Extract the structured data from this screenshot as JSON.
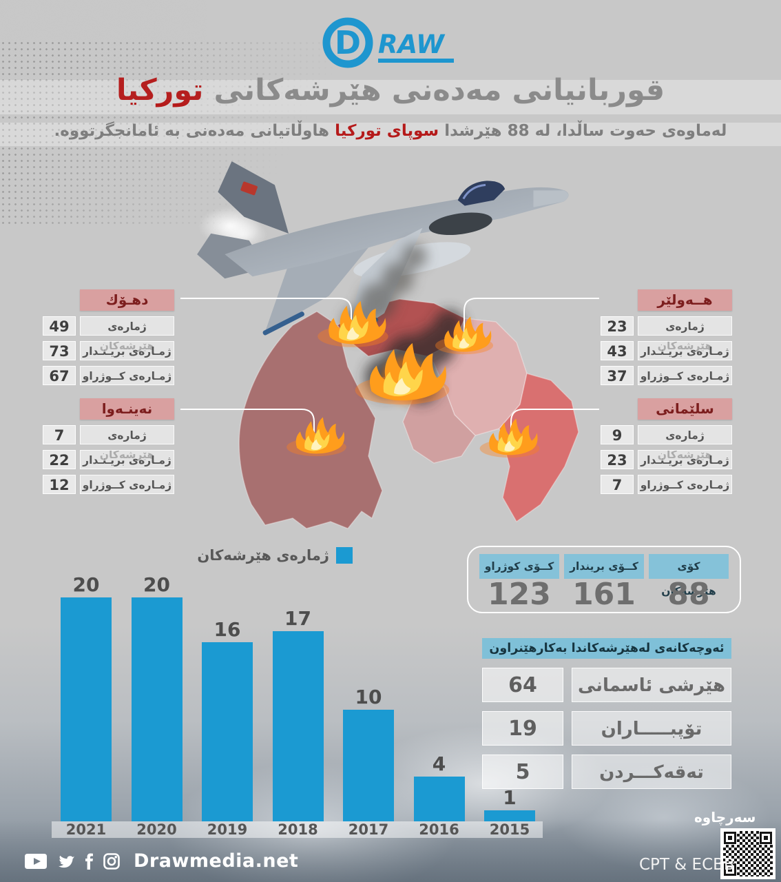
{
  "brand": {
    "logo_d": "D",
    "logo_raw": "RAW"
  },
  "header": {
    "title_main": "قوربانیانی مەدەنی هێرشەکانی",
    "title_accent": "تورکیا",
    "subtitle_pre": "لەماوەی حەوت ساڵدا، لە 88 هێرشدا",
    "subtitle_accent": "سوپای تورکیا",
    "subtitle_post": "هاوڵاتیانی مەدەنی بە ئامانجگرتووە."
  },
  "stat_labels": {
    "attacks": "ژمارەی هێرشەکان",
    "wounded": "ژمـارەی بریـنـدار",
    "killed": "ژمـارەی کــوژراو"
  },
  "regions": [
    {
      "name": "دهـۆك",
      "attacks": "49",
      "wounded": "73",
      "killed": "67"
    },
    {
      "name": "هــەولێر",
      "attacks": "23",
      "wounded": "43",
      "killed": "37"
    },
    {
      "name": "نەینـەوا",
      "attacks": "7",
      "wounded": "22",
      "killed": "12"
    },
    {
      "name": "سلێمانی",
      "attacks": "9",
      "wounded": "23",
      "killed": "7"
    }
  ],
  "legend": {
    "label": "ژمارەی هێرشەکان"
  },
  "totals": {
    "attacks_label": "کۆی هێرشەکان",
    "attacks": "88",
    "wounded_label": "کــۆی بریندار",
    "wounded": "161",
    "killed_label": "کــۆی کوژراو",
    "killed": "123"
  },
  "weapons": {
    "header": "ئەوچەکانەی لەهێرشەکاندا بەکارهێنراون",
    "rows": [
      {
        "label": "هێرشی ئاسمانی",
        "value": "64"
      },
      {
        "label": "تۆپبـــــاران",
        "value": "19"
      },
      {
        "label": "تەقەکـــردن",
        "value": "5"
      }
    ]
  },
  "chart_data": {
    "type": "bar",
    "categories": [
      "2021",
      "2020",
      "2019",
      "2018",
      "2017",
      "2016",
      "2015"
    ],
    "values": [
      20,
      20,
      16,
      17,
      10,
      4,
      1
    ],
    "title": "ژمارەی هێرشەکان",
    "xlabel": "",
    "ylabel": "",
    "ylim": [
      0,
      20
    ],
    "grid": false,
    "legend_position": "top-left",
    "bar_color": "#1b9ad2"
  },
  "footer": {
    "site": "Drawmedia.net",
    "source_label": "سەرچاوە",
    "credit": "CPT & ECBB"
  },
  "colors": {
    "accent_blue": "#1b9ad2",
    "accent_red": "#b51a1a",
    "pink_header_bg": "#d9a0a0",
    "pink_header_text": "#7c1d1d",
    "blue_cell": "#85c2d9",
    "map_nineveh": "#a87070",
    "map_duhok": "#b25252",
    "map_erbil": "#dfb0b0",
    "map_slemani": "#d97070"
  }
}
